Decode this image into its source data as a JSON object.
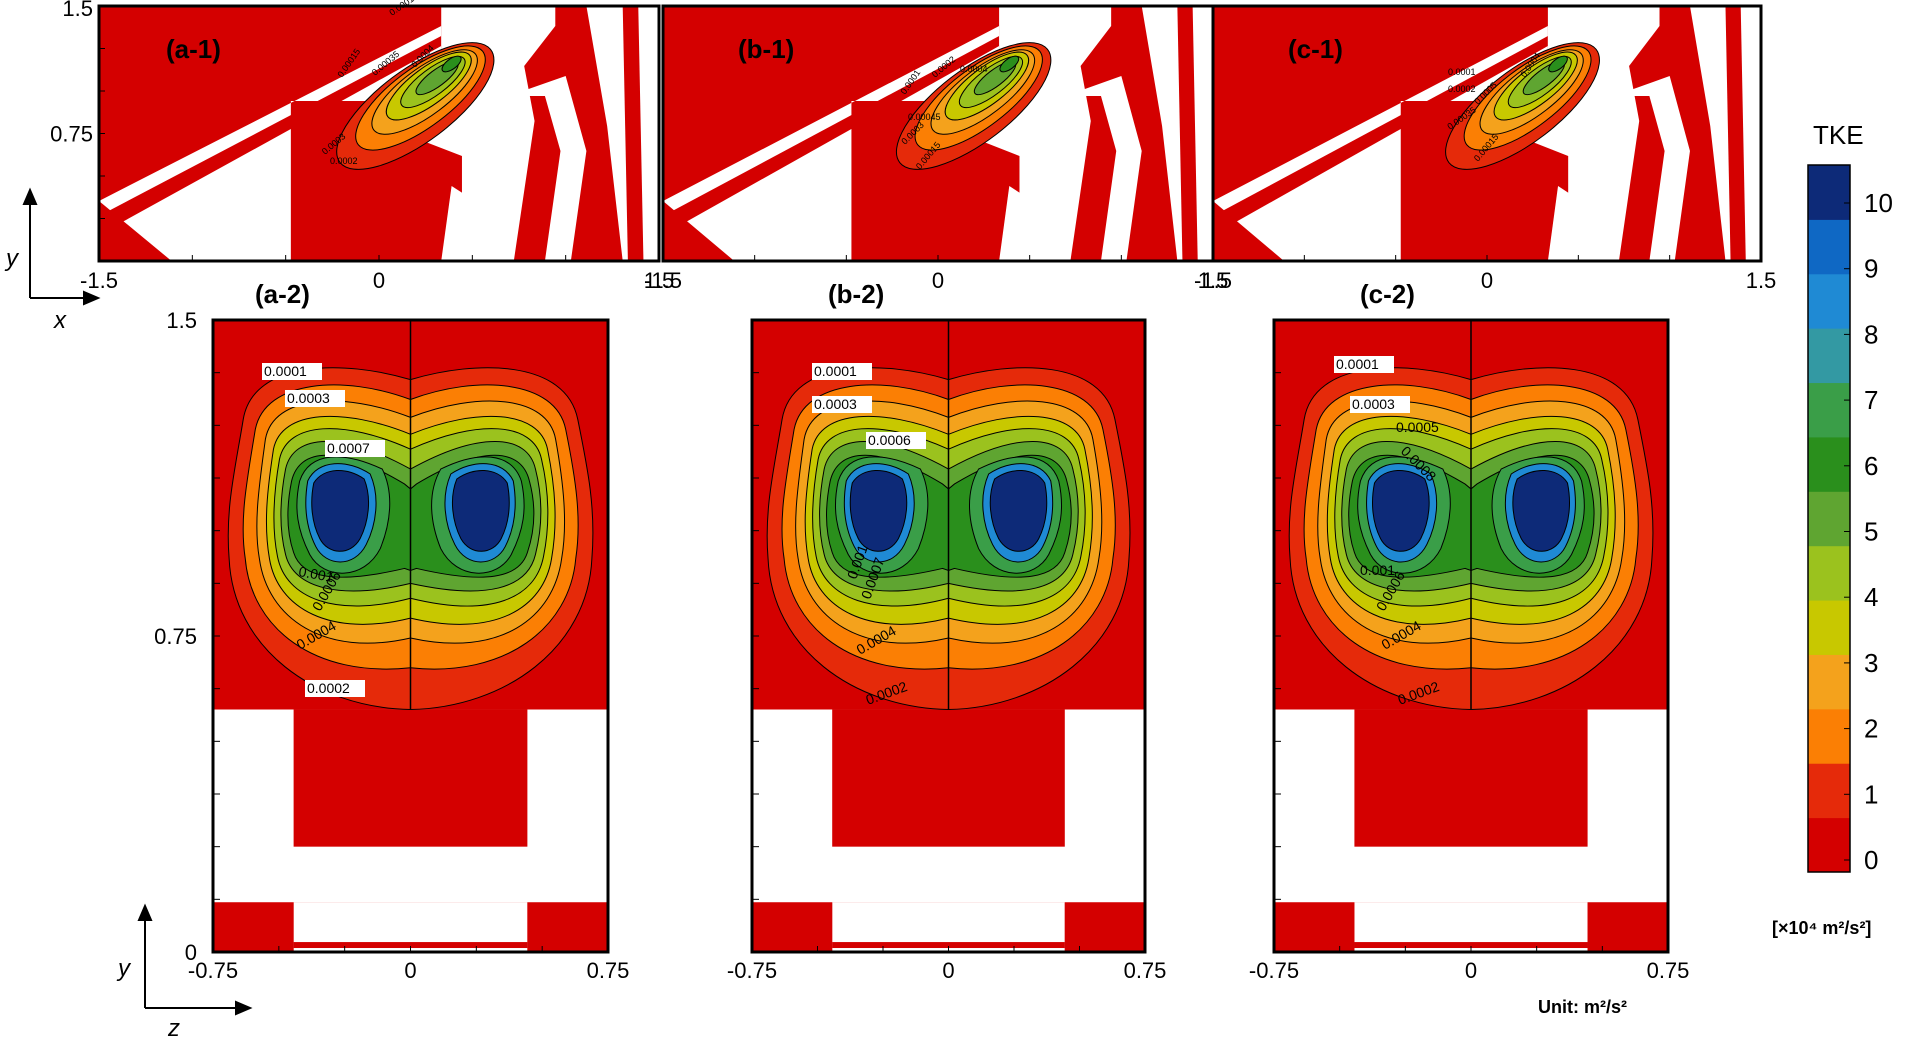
{
  "figure": {
    "unit_label": "Unit: m²/s²",
    "axis_y_symbol": "y",
    "axis_x_symbol": "x",
    "axis_z_symbol": "z"
  },
  "colorbar": {
    "title": "TKE",
    "unit": "[×10⁴ m²/s²]",
    "ticks": [
      "0",
      "1",
      "2",
      "3",
      "4",
      "5",
      "6",
      "7",
      "8",
      "9",
      "10"
    ],
    "colors": [
      "#d40000",
      "#e52a0a",
      "#fb7f04",
      "#f4a21c",
      "#c8c800",
      "#9bc21e",
      "#5fa531",
      "#2a8f1c",
      "#3a9e48",
      "#3399a3",
      "#1f8ad4",
      "#0f68c4",
      "#0d2a78"
    ]
  },
  "top_panels": [
    {
      "label": "(a-1)",
      "contour_labels": [
        "0.0001",
        "0.00015",
        "0.00035",
        "0.0004",
        "0.0003",
        "0.0002"
      ]
    },
    {
      "label": "(b-1)",
      "contour_labels": [
        "0.0001",
        "0.0002",
        "0.00045",
        "0.0004",
        "0.0003",
        "0.00015"
      ]
    },
    {
      "label": "(c-1)",
      "contour_labels": [
        "0.0001",
        "0.0002",
        "0.0005",
        "0.0004",
        "0.00035",
        "0.00015"
      ]
    }
  ],
  "bottom_panels": [
    {
      "label": "(a-2)",
      "contour_labels": [
        "0.0001",
        "0.0003",
        "0.0007",
        "0.001",
        "0.0006",
        "0.0004",
        "0.0002"
      ]
    },
    {
      "label": "(b-2)",
      "contour_labels": [
        "0.0001",
        "0.0003",
        "0.0006",
        "0.001",
        "0.0007",
        "0.0004",
        "0.0002"
      ]
    },
    {
      "label": "(c-2)",
      "contour_labels": [
        "0.0001",
        "0.0003",
        "0.0005",
        "0.0008",
        "0.001",
        "0.0006",
        "0.0004",
        "0.0002"
      ]
    }
  ],
  "chart_data": [
    {
      "type": "heatmap",
      "title": "(a-1)",
      "xlabel": "x",
      "ylabel": "y",
      "xlim": [
        -1.5,
        1.5
      ],
      "ylim": [
        0,
        1.5
      ],
      "x_ticks": [
        "-1.5",
        "0",
        "1.5"
      ],
      "y_ticks": [
        "0.75",
        "1.5"
      ],
      "peak_tke": 0.0004,
      "field": "TKE"
    },
    {
      "type": "heatmap",
      "title": "(b-1)",
      "xlabel": "x",
      "ylabel": "y",
      "xlim": [
        -1.5,
        1.5
      ],
      "ylim": [
        0,
        1.5
      ],
      "x_ticks": [
        "-1.5",
        "0",
        "1.5"
      ],
      "y_ticks": [
        "0.75",
        "1.5"
      ],
      "peak_tke": 0.00045,
      "field": "TKE"
    },
    {
      "type": "heatmap",
      "title": "(c-1)",
      "xlabel": "x",
      "ylabel": "y",
      "xlim": [
        -1.5,
        1.5
      ],
      "ylim": [
        0,
        1.5
      ],
      "x_ticks": [
        "-1.5",
        "0",
        "1.5"
      ],
      "y_ticks": [
        "0.75",
        "1.5"
      ],
      "peak_tke": 0.0005,
      "field": "TKE"
    },
    {
      "type": "heatmap",
      "title": "(a-2)",
      "xlabel": "z",
      "ylabel": "y",
      "xlim": [
        -0.75,
        0.75
      ],
      "ylim": [
        0,
        1.5
      ],
      "x_ticks": [
        "-0.75",
        "0",
        "0.75"
      ],
      "y_ticks": [
        "0",
        "0.75",
        "1.5"
      ],
      "peak_tke": 0.001,
      "field": "TKE"
    },
    {
      "type": "heatmap",
      "title": "(b-2)",
      "xlabel": "z",
      "ylabel": "y",
      "xlim": [
        -0.75,
        0.75
      ],
      "ylim": [
        0,
        1.5
      ],
      "x_ticks": [
        "-0.75",
        "0",
        "0.75"
      ],
      "y_ticks": [
        "0",
        "0.75",
        "1.5"
      ],
      "peak_tke": 0.001,
      "field": "TKE"
    },
    {
      "type": "heatmap",
      "title": "(c-2)",
      "xlabel": "z",
      "ylabel": "y",
      "xlim": [
        -0.75,
        0.75
      ],
      "ylim": [
        0,
        1.5
      ],
      "x_ticks": [
        "-0.75",
        "0",
        "0.75"
      ],
      "y_ticks": [
        "0",
        "0.75",
        "1.5"
      ],
      "peak_tke": 0.001,
      "field": "TKE"
    }
  ]
}
